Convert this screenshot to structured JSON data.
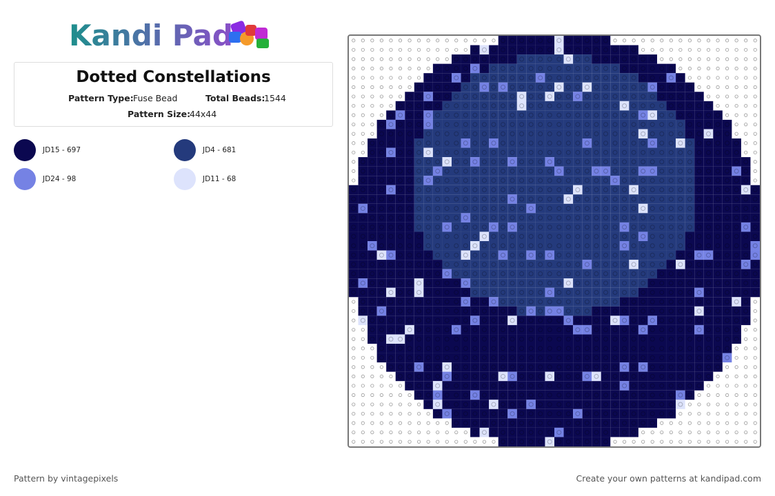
{
  "header": {
    "logo": "Kandi Pad"
  },
  "pattern": {
    "title": "Dotted Constellations",
    "type_label": "Pattern Type:",
    "type_value": "Fuse Bead",
    "beads_label": "Total Beads:",
    "beads_value": "1544",
    "size_label": "Pattern Size:",
    "size_value": "44x44"
  },
  "colors": [
    {
      "label": "JD15 - 697",
      "color": "#0b0850"
    },
    {
      "label": "JD4 - 681",
      "color": "#243a7c"
    },
    {
      "label": "JD24 - 98",
      "color": "#7582e4"
    },
    {
      "label": "JD11 - 68",
      "color": "#dde3fc"
    }
  ],
  "footer": {
    "credit": "Pattern by vintagepixels",
    "cta": "Create your own patterns at kandipad.com"
  }
}
